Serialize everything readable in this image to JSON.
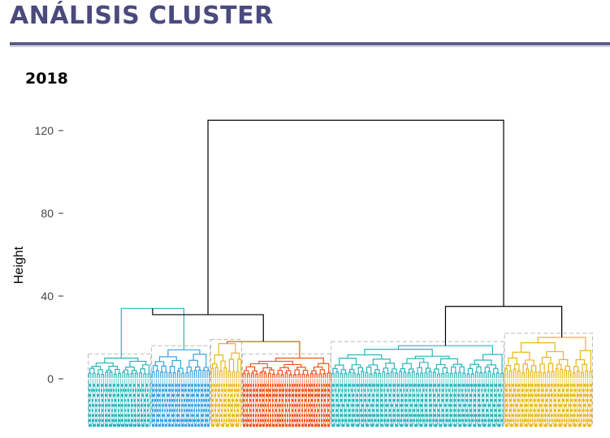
{
  "slide": {
    "title": "ANÁLISIS CLUSTER",
    "year": "2018"
  },
  "colors": {
    "title": "#4a4a7e",
    "teal": "#2bb5bd",
    "blue": "#3aa3e0",
    "yellow": "#e8b814",
    "orange": "#f2541a",
    "black": "#000000",
    "box": "#bbbbbb"
  },
  "chart_data": {
    "type": "dendrogram",
    "ylabel": "Height",
    "ylim": [
      -25,
      128
    ],
    "y_ticks": [
      0,
      40,
      80,
      120
    ],
    "root_height": 125,
    "clusters": [
      {
        "color": "teal",
        "leaves": 30,
        "height": 10
      },
      {
        "color": "blue",
        "leaves": 28,
        "height": 14
      },
      {
        "color": "yellow",
        "leaves": 15,
        "height": 17
      },
      {
        "color": "orange",
        "leaves": 42,
        "height": 10
      },
      {
        "color": "teal",
        "leaves": 82,
        "height": 16
      },
      {
        "color": "yellow",
        "leaves": 42,
        "height": 20
      }
    ],
    "merges": [
      {
        "a": "c1",
        "b": "c2",
        "height": 34,
        "color": "teal"
      },
      {
        "a": "c3",
        "b": "c4",
        "height": 18,
        "color": "orange"
      },
      {
        "a": "m1",
        "b": "m2",
        "height": 31,
        "color": "black"
      },
      {
        "a": "c5",
        "b": "c6",
        "height": 35,
        "color": "black"
      },
      {
        "a": "m3",
        "b": "m4",
        "height": 125,
        "color": "black"
      }
    ]
  }
}
